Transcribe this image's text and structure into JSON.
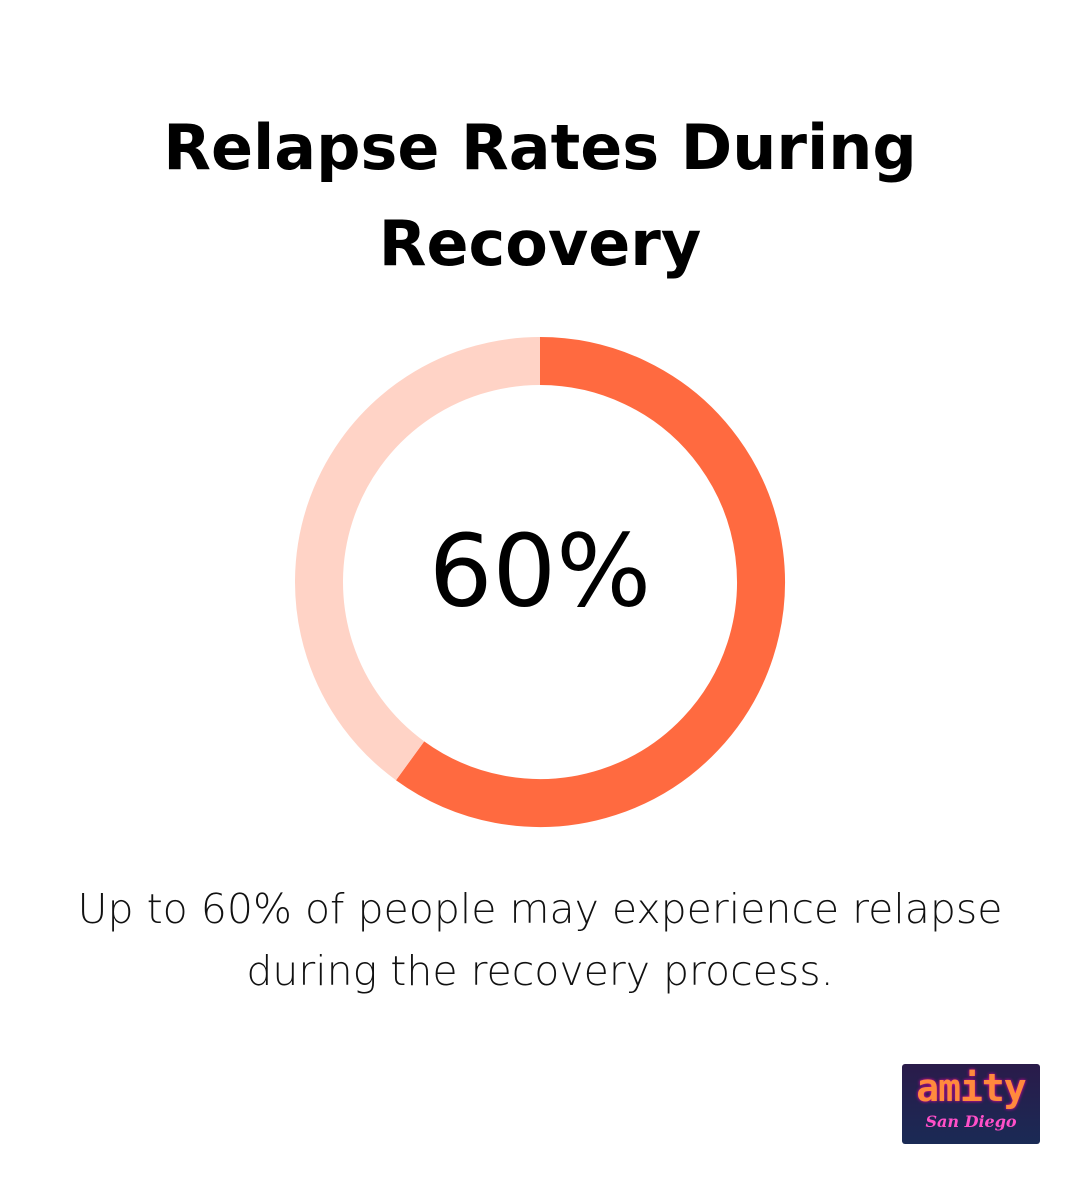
{
  "chart_data": {
    "type": "donut",
    "title": "Relapse Rates During Recovery",
    "values": [
      60,
      40
    ],
    "colors": [
      "#ff6a40",
      "#ffd3c6"
    ],
    "center_label": "60%",
    "caption": "Up to 60% of people may experience relapse during the recovery process."
  },
  "logo": {
    "text": "amity",
    "subtext": "San Diego"
  }
}
